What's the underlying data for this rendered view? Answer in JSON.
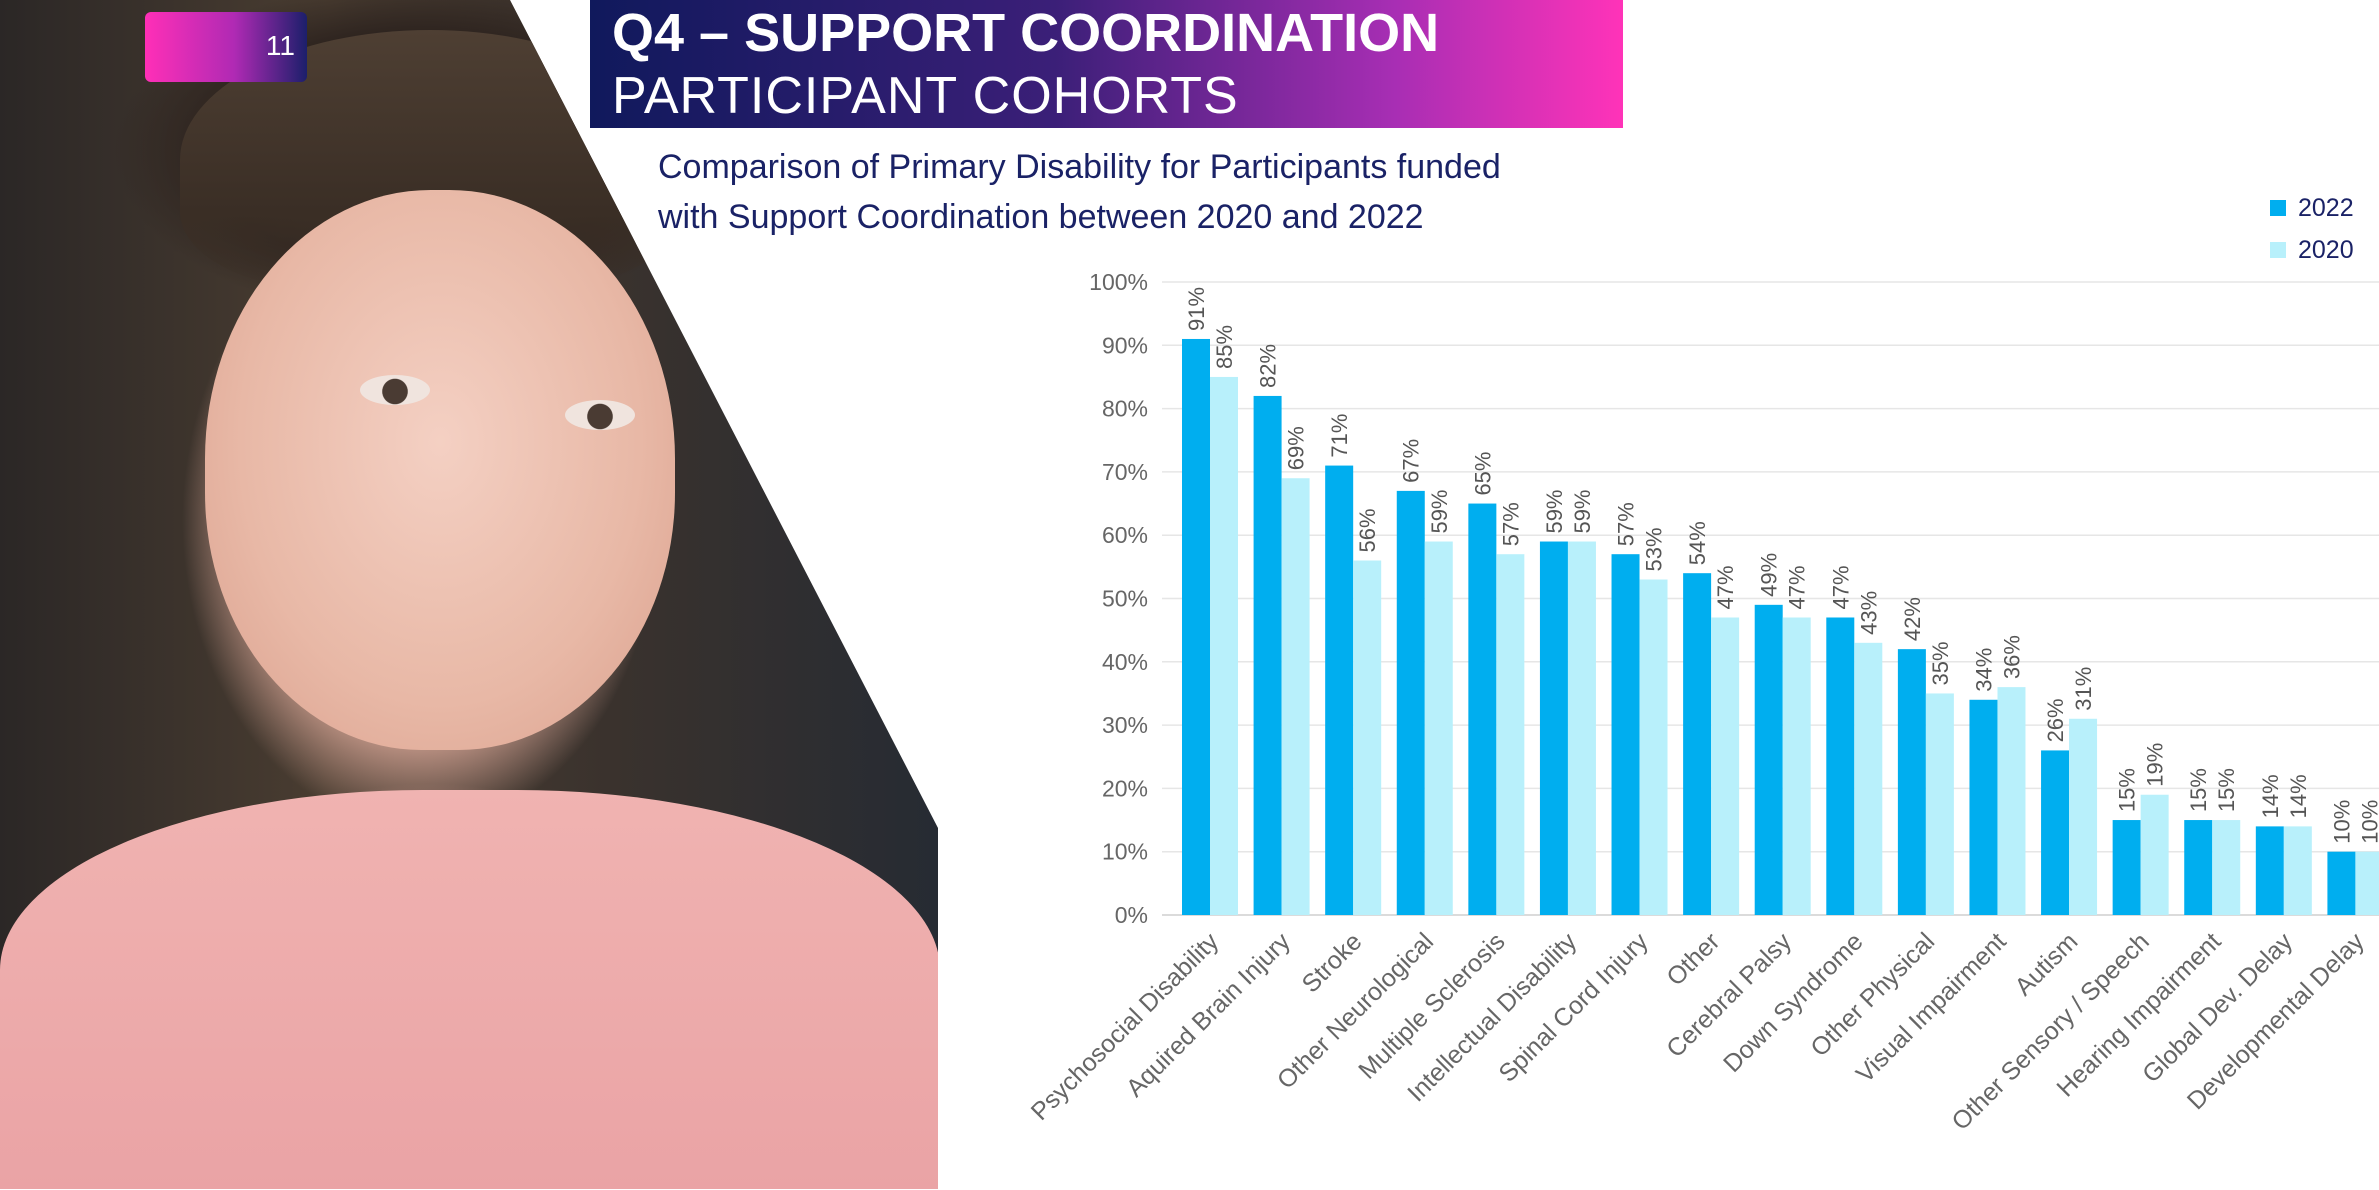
{
  "page": {
    "number": "11",
    "title_main": "Q4 – SUPPORT COORDINATION",
    "title_sub": "PARTICIPANT COHORTS",
    "subtitle_line1": "Comparison of Primary Disability for Participants funded",
    "subtitle_line2": "with Support Coordination between 2020 and 2022"
  },
  "colors": {
    "series_2022": "#00aeef",
    "series_2020": "#b8f0fb",
    "title_gradient_start": "#10195c",
    "title_gradient_end": "#ff33b8",
    "subtitle": "#1a2266"
  },
  "photo": {
    "description_icon": "person-photo"
  },
  "chart_data": {
    "type": "bar",
    "title": "",
    "xlabel": "",
    "ylabel": "",
    "ylim": [
      0,
      100
    ],
    "y_ticks": [
      "0%",
      "10%",
      "20%",
      "30%",
      "40%",
      "50%",
      "60%",
      "70%",
      "80%",
      "90%",
      "100%"
    ],
    "grid": true,
    "legend_position": "top-right",
    "value_label_suffix": "%",
    "categories": [
      "Psychosocial Disability",
      "Aquired Brain Injury",
      "Stroke",
      "Other Neurological",
      "Multiple Sclerosis",
      "Intellectual Disability",
      "Spinal Cord Injury",
      "Other",
      "Cerebral Palsy",
      "Down Syndrome",
      "Other Physical",
      "Visual Impairment",
      "Autism",
      "Other Sensory / Speech",
      "Hearing Impairment",
      "Global Dev. Delay",
      "Developmental Delay"
    ],
    "series": [
      {
        "name": "2022",
        "values": [
          91,
          82,
          71,
          67,
          65,
          59,
          57,
          54,
          49,
          47,
          42,
          34,
          26,
          15,
          15,
          14,
          10
        ]
      },
      {
        "name": "2020",
        "values": [
          85,
          69,
          56,
          59,
          57,
          59,
          53,
          47,
          47,
          43,
          35,
          36,
          31,
          19,
          15,
          14,
          10
        ]
      }
    ]
  }
}
